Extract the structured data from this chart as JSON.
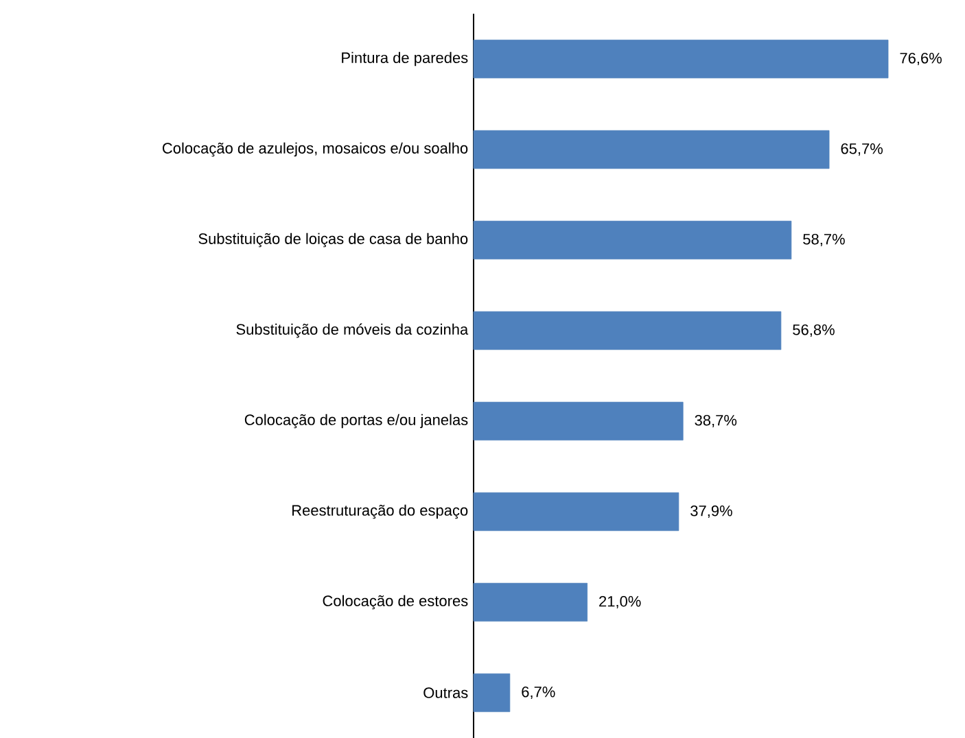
{
  "chart_data": {
    "type": "bar",
    "orientation": "horizontal",
    "categories": [
      "Pintura de paredes",
      "Colocação de azulejos, mosaicos e/ou soalho",
      "Substituição de loiças de casa de banho",
      "Substituição de móveis da cozinha",
      "Colocação de portas e/ou janelas",
      "Reestruturação do espaço",
      "Colocação de estores",
      "Outras"
    ],
    "values": [
      76.6,
      65.7,
      58.7,
      56.8,
      38.7,
      37.9,
      21.0,
      6.7
    ],
    "value_labels": [
      "76,6%",
      "65,7%",
      "58,7%",
      "56,8%",
      "38,7%",
      "37,9%",
      "21,0%",
      "6,7%"
    ],
    "color": "#4f81bd"
  }
}
